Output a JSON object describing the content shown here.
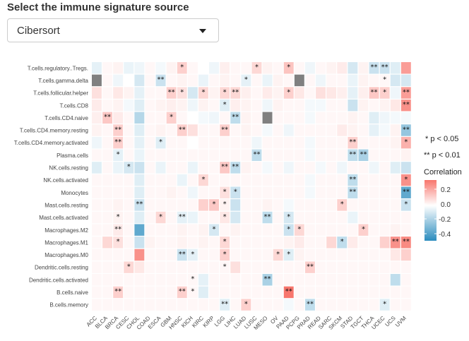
{
  "header": {
    "title": "Select the immune signature source"
  },
  "selector": {
    "value": "Cibersort"
  },
  "legend": {
    "sig1": "* p < 0.05",
    "sig2": "** p < 0.01",
    "title": "Correlation",
    "ticks": [
      "0.2",
      "0.0",
      "-0.2",
      "-0.4"
    ],
    "colors": {
      "high": "#f8766d",
      "mid": "#ffffff",
      "low": "#2b8cbe",
      "na": "#808080"
    }
  },
  "chart_data": {
    "type": "heatmap",
    "x_categories": [
      "ACC",
      "BLCA",
      "BRCA",
      "CESC",
      "CHOL",
      "COAD",
      "ESCA",
      "GBM",
      "HNSC",
      "KICH",
      "KIRC",
      "KIRP",
      "LGG",
      "LIHC",
      "LUAD",
      "LUSC",
      "MESO",
      "OV",
      "PAAD",
      "PCPG",
      "PRAD",
      "READ",
      "SARC",
      "SKCM",
      "STAD",
      "TGCT",
      "THCA",
      "UCEC",
      "UCS",
      "UVM"
    ],
    "y_categories": [
      "T.cells.regulatory..Tregs.",
      "T.cells.gamma.delta",
      "T.cells.follicular.helper",
      "T.cells.CD8",
      "T.cells.CD4.naive",
      "T.cells.CD4.memory.resting",
      "T.cells.CD4.memory.activated",
      "Plasma.cells",
      "NK.cells.resting",
      "NK.cells.activated",
      "Monocytes",
      "Mast.cells.resting",
      "Mast.cells.activated",
      "Macrophages.M2",
      "Macrophages.M1",
      "Macrophages.M0",
      "Dendritic.cells.resting",
      "Dendritic.cells.activated",
      "B.cells.naive",
      "B.cells.memory"
    ],
    "values": [
      [
        -0.05,
        0.02,
        0.03,
        -0.04,
        -0.03,
        0.02,
        -0.02,
        0.03,
        0.12,
        0.02,
        0.0,
        -0.03,
        0.04,
        0.02,
        0.02,
        0.1,
        0.03,
        0.02,
        0.15,
        0.02,
        -0.03,
        0.02,
        0.03,
        0.05,
        -0.08,
        0.03,
        -0.1,
        -0.1,
        -0.06,
        0.25
      ],
      [
        null,
        0.02,
        -0.03,
        0.0,
        -0.08,
        0.02,
        -0.1,
        0.02,
        0.03,
        0.02,
        -0.04,
        0.02,
        0.03,
        0.02,
        -0.05,
        0.02,
        -0.04,
        0.03,
        0.02,
        null,
        0.02,
        -0.03,
        0.02,
        0.02,
        -0.04,
        0.03,
        0.02,
        0.02,
        -0.08,
        -0.08
      ],
      [
        0.08,
        0.02,
        0.06,
        0.03,
        -0.05,
        0.02,
        0.02,
        0.12,
        0.08,
        -0.08,
        0.1,
        0.03,
        0.1,
        0.1,
        0.04,
        0.02,
        0.05,
        0.03,
        0.12,
        0.06,
        0.02,
        0.08,
        0.06,
        0.04,
        -0.05,
        0.04,
        0.14,
        0.12,
        -0.03,
        0.25
      ],
      [
        0.05,
        0.02,
        0.03,
        -0.02,
        -0.06,
        0.02,
        0.03,
        0.04,
        0.03,
        -0.03,
        0.03,
        0.02,
        -0.06,
        0.04,
        0.03,
        0.02,
        -0.03,
        0.03,
        0.02,
        0.02,
        -0.02,
        -0.02,
        0.02,
        0.02,
        -0.1,
        0.03,
        0.02,
        0.03,
        0.06,
        0.28
      ],
      [
        0.04,
        0.14,
        0.05,
        0.02,
        -0.14,
        0.02,
        0.02,
        0.12,
        0.02,
        0.0,
        -0.02,
        -0.03,
        0.02,
        -0.12,
        0.03,
        0.02,
        null,
        0.02,
        0.02,
        0.02,
        -0.02,
        0.02,
        0.02,
        0.02,
        0.03,
        0.02,
        -0.06,
        -0.03,
        -0.02,
        -0.02
      ],
      [
        0.03,
        0.02,
        0.12,
        0.02,
        -0.06,
        0.02,
        0.03,
        0.02,
        0.12,
        0.08,
        0.02,
        0.02,
        0.12,
        0.02,
        0.03,
        0.02,
        -0.02,
        0.02,
        -0.03,
        0.02,
        0.02,
        0.02,
        0.02,
        0.05,
        0.03,
        0.02,
        -0.05,
        -0.02,
        0.03,
        -0.2
      ],
      [
        -0.03,
        0.02,
        0.12,
        0.02,
        -0.05,
        0.02,
        -0.06,
        0.02,
        0.02,
        0.0,
        0.02,
        0.02,
        0.02,
        0.02,
        0.02,
        -0.03,
        0.02,
        0.02,
        0.02,
        0.02,
        -0.02,
        0.02,
        0.02,
        0.02,
        0.12,
        0.02,
        0.02,
        0.02,
        0.03,
        0.2
      ],
      [
        0.02,
        0.02,
        -0.05,
        0.02,
        -0.04,
        0.02,
        0.02,
        0.02,
        0.02,
        0.02,
        0.02,
        0.02,
        0.02,
        0.02,
        0.02,
        -0.12,
        0.02,
        0.02,
        0.02,
        0.02,
        -0.02,
        0.02,
        0.02,
        0.02,
        -0.12,
        -0.16,
        0.02,
        0.02,
        0.02,
        0.03
      ],
      [
        -0.06,
        0.02,
        -0.04,
        -0.08,
        -0.1,
        0.02,
        -0.04,
        0.02,
        0.02,
        -0.04,
        0.02,
        0.02,
        0.14,
        -0.12,
        0.03,
        0.02,
        -0.02,
        0.02,
        -0.03,
        0.02,
        0.02,
        -0.02,
        0.02,
        -0.03,
        0.02,
        0.02,
        -0.03,
        0.02,
        -0.06,
        -0.1
      ],
      [
        0.02,
        0.02,
        0.02,
        0.02,
        -0.06,
        0.02,
        0.02,
        0.02,
        -0.04,
        0.02,
        0.1,
        0.02,
        0.02,
        0.02,
        0.02,
        0.02,
        0.02,
        0.02,
        0.02,
        0.02,
        -0.02,
        0.02,
        0.02,
        0.02,
        -0.12,
        0.02,
        0.02,
        0.02,
        0.02,
        0.28
      ],
      [
        0.02,
        0.02,
        0.02,
        0.02,
        -0.06,
        0.02,
        0.02,
        0.03,
        0.02,
        -0.03,
        0.02,
        0.02,
        0.08,
        -0.1,
        0.02,
        0.02,
        0.02,
        0.02,
        0.02,
        0.02,
        -0.02,
        0.02,
        0.02,
        0.02,
        -0.12,
        0.02,
        0.02,
        0.02,
        0.02,
        -0.3
      ],
      [
        0.02,
        0.02,
        0.03,
        0.02,
        -0.1,
        0.02,
        0.02,
        0.02,
        0.02,
        0.02,
        0.12,
        0.14,
        0.03,
        -0.1,
        0.02,
        0.02,
        0.03,
        0.02,
        -0.02,
        0.02,
        0.02,
        0.02,
        0.02,
        0.12,
        0.02,
        0.02,
        0.02,
        0.02,
        0.02,
        -0.1
      ],
      [
        0.02,
        0.02,
        0.03,
        0.02,
        -0.06,
        0.02,
        0.1,
        0.02,
        -0.05,
        -0.04,
        0.02,
        0.02,
        0.06,
        -0.08,
        0.02,
        0.02,
        -0.12,
        0.02,
        -0.08,
        0.02,
        0.02,
        0.02,
        0.02,
        0.02,
        -0.04,
        0.02,
        0.02,
        0.02,
        0.02,
        0.02
      ],
      [
        0.02,
        0.02,
        0.05,
        0.02,
        -0.3,
        0.02,
        0.02,
        0.02,
        0.03,
        0.02,
        0.03,
        -0.08,
        0.02,
        0.03,
        0.02,
        0.02,
        0.02,
        0.02,
        -0.1,
        0.1,
        0.02,
        0.02,
        0.02,
        0.02,
        0.02,
        0.12,
        0.02,
        0.02,
        0.03,
        0.02
      ],
      [
        0.02,
        0.1,
        0.08,
        0.02,
        -0.1,
        0.03,
        0.02,
        0.02,
        0.03,
        0.02,
        0.03,
        0.02,
        0.1,
        0.02,
        0.02,
        0.02,
        0.02,
        0.02,
        0.03,
        0.05,
        0.02,
        0.02,
        0.1,
        -0.12,
        0.05,
        0.02,
        0.02,
        0.12,
        0.28,
        0.3
      ],
      [
        0.02,
        0.02,
        0.02,
        0.02,
        0.28,
        0.02,
        0.02,
        0.02,
        -0.1,
        -0.05,
        0.02,
        0.02,
        0.12,
        0.02,
        0.02,
        0.02,
        0.02,
        0.1,
        -0.06,
        0.03,
        0.02,
        0.02,
        0.02,
        0.02,
        0.02,
        0.02,
        0.02,
        0.02,
        0.06,
        0.12
      ],
      [
        0.02,
        0.02,
        0.02,
        0.1,
        0.06,
        0.02,
        0.02,
        0.02,
        0.02,
        0.02,
        0.02,
        0.02,
        0.02,
        0.08,
        0.02,
        0.02,
        0.02,
        0.02,
        0.02,
        0.02,
        0.12,
        0.02,
        0.02,
        0.02,
        0.02,
        0.02,
        0.02,
        0.02,
        0.02,
        0.02
      ],
      [
        0.02,
        0.02,
        0.02,
        0.02,
        0.02,
        0.02,
        0.02,
        0.02,
        0.02,
        0.02,
        -0.05,
        0.02,
        0.02,
        0.02,
        0.02,
        0.02,
        -0.16,
        0.02,
        0.02,
        0.02,
        0.02,
        0.02,
        0.02,
        0.02,
        0.02,
        0.02,
        0.02,
        0.02,
        -0.12,
        0.02
      ],
      [
        0.02,
        0.02,
        0.12,
        0.02,
        0.02,
        0.02,
        0.02,
        0.02,
        0.12,
        0.02,
        -0.06,
        0.02,
        0.02,
        0.02,
        0.02,
        0.02,
        0.02,
        0.02,
        0.35,
        0.02,
        0.02,
        0.02,
        0.02,
        0.02,
        0.02,
        0.02,
        0.02,
        0.02,
        0.02,
        0.02
      ],
      [
        0.02,
        0.02,
        0.02,
        0.02,
        0.02,
        0.02,
        0.02,
        0.02,
        0.02,
        0.02,
        0.02,
        0.02,
        -0.06,
        0.02,
        0.12,
        0.02,
        0.02,
        0.02,
        -0.02,
        0.02,
        -0.12,
        0.02,
        0.02,
        0.02,
        0.02,
        0.02,
        0.02,
        -0.06,
        0.02,
        0.02
      ]
    ],
    "stars": [
      [
        "",
        "",
        "",
        "",
        "",
        "",
        "",
        "",
        "*",
        "",
        "",
        "",
        "",
        "",
        "",
        "*",
        "",
        "",
        "*",
        "",
        "",
        "",
        "",
        "",
        "",
        "",
        "**",
        "**",
        "",
        ""
      ],
      [
        "",
        "",
        "",
        "",
        "",
        "",
        "**",
        "",
        "",
        "",
        "",
        "",
        "",
        "",
        "*",
        "",
        "",
        "",
        "",
        "",
        "",
        "",
        "",
        "",
        "",
        "",
        "",
        "*",
        "",
        ""
      ],
      [
        "",
        "",
        "",
        "",
        "",
        "",
        "",
        "**",
        "*",
        "",
        "*",
        "",
        "*",
        "**",
        "",
        "",
        "",
        "",
        "*",
        "",
        "",
        "",
        "",
        "",
        "",
        "",
        "**",
        "*",
        "",
        "**"
      ],
      [
        "",
        "",
        "",
        "",
        "",
        "",
        "",
        "",
        "",
        "",
        "",
        "",
        "*",
        "",
        "",
        "",
        "",
        "",
        "",
        "",
        "",
        "",
        "",
        "",
        "",
        "",
        "",
        "",
        "",
        "**"
      ],
      [
        "",
        "**",
        "",
        "",
        "",
        "",
        "",
        "*",
        "",
        "",
        "",
        "",
        "",
        "**",
        "",
        "",
        "",
        "",
        "",
        "",
        "",
        "",
        "",
        "",
        "",
        "",
        "",
        "",
        "",
        ""
      ],
      [
        "",
        "",
        "**",
        "",
        "",
        "",
        "",
        "",
        "**",
        "",
        "",
        "",
        "**",
        "",
        "",
        "",
        "",
        "",
        "",
        "",
        "",
        "",
        "",
        "",
        "",
        "",
        "",
        "",
        "",
        "**"
      ],
      [
        "",
        "",
        "**",
        "",
        "",
        "",
        "*",
        "",
        "",
        "",
        "",
        "",
        "",
        "",
        "",
        "",
        "",
        "",
        "",
        "",
        "",
        "",
        "",
        "",
        "**",
        "",
        "",
        "",
        "",
        "*"
      ],
      [
        "",
        "",
        "*",
        "",
        "",
        "",
        "",
        "",
        "",
        "",
        "",
        "",
        "",
        "",
        "",
        "**",
        "",
        "",
        "",
        "",
        "",
        "",
        "",
        "",
        "**",
        "**",
        "",
        "",
        "",
        ""
      ],
      [
        "",
        "",
        "",
        "*",
        "",
        "",
        "",
        "",
        "",
        "",
        "",
        "",
        "**",
        "**",
        "",
        "",
        "",
        "",
        "",
        "",
        "",
        "",
        "",
        "",
        "",
        "",
        "",
        "",
        "",
        ""
      ],
      [
        "",
        "",
        "",
        "",
        "",
        "",
        "",
        "",
        "",
        "",
        "*",
        "",
        "",
        "",
        "",
        "",
        "",
        "",
        "",
        "",
        "",
        "",
        "",
        "",
        "**",
        "",
        "",
        "",
        "",
        "*"
      ],
      [
        "",
        "",
        "",
        "",
        "",
        "",
        "",
        "",
        "",
        "",
        "",
        "",
        "*",
        "*",
        "",
        "",
        "",
        "",
        "",
        "",
        "",
        "",
        "",
        "",
        "**",
        "",
        "",
        "",
        "",
        "**"
      ],
      [
        "",
        "",
        "",
        "",
        "**",
        "",
        "",
        "",
        "",
        "",
        "",
        "*",
        "*",
        "",
        "",
        "",
        "",
        "",
        "",
        "",
        "",
        "",
        "",
        "*",
        "",
        "",
        "",
        "",
        "",
        "*"
      ],
      [
        "",
        "",
        "*",
        "",
        "",
        "",
        "*",
        "",
        "**",
        "",
        "",
        "",
        "*",
        "",
        "",
        "",
        "**",
        "",
        "*",
        "",
        "",
        "",
        "",
        "",
        "",
        "",
        "",
        "",
        "",
        ""
      ],
      [
        "",
        "",
        "**",
        "",
        "",
        "",
        "",
        "",
        "",
        "",
        "",
        "*",
        "",
        "",
        "",
        "",
        "",
        "",
        "*",
        "*",
        "",
        "",
        "",
        "",
        "",
        "*",
        "",
        "",
        "",
        ""
      ],
      [
        "",
        "",
        "*",
        "",
        "",
        "",
        "",
        "",
        "",
        "",
        "",
        "",
        "*",
        "",
        "",
        "",
        "",
        "",
        "",
        "",
        "",
        "",
        "",
        "*",
        "",
        "",
        "",
        "",
        "**",
        "**"
      ],
      [
        "",
        "",
        "",
        "",
        "",
        "",
        "",
        "",
        "**",
        "*",
        "",
        "",
        "*",
        "",
        "",
        "",
        "",
        "*",
        "*",
        "",
        "",
        "",
        "",
        "",
        "",
        "",
        "",
        "",
        "",
        ""
      ],
      [
        "",
        "",
        "",
        "*",
        "",
        "",
        "",
        "",
        "",
        "",
        "",
        "",
        "*",
        "",
        "",
        "",
        "",
        "",
        "",
        "",
        "**",
        "",
        "",
        "",
        "",
        "",
        "",
        "",
        "",
        ""
      ],
      [
        "",
        "",
        "",
        "",
        "",
        "",
        "",
        "",
        "",
        "*",
        "",
        "",
        "",
        "",
        "",
        "",
        "**",
        "",
        "",
        "",
        "",
        "",
        "",
        "",
        "",
        "",
        "",
        "",
        "",
        ""
      ],
      [
        "",
        "",
        "**",
        "",
        "",
        "",
        "",
        "",
        "**",
        "*",
        "",
        "",
        "",
        "",
        "",
        "",
        "",
        "",
        "**",
        "",
        "",
        "",
        "",
        "",
        "",
        "",
        "",
        "",
        "",
        ""
      ],
      [
        "",
        "",
        "",
        "",
        "",
        "",
        "",
        "",
        "",
        "",
        "",
        "",
        "**",
        "",
        "*",
        "",
        "",
        "",
        "",
        "",
        "**",
        "",
        "",
        "",
        "",
        "",
        "",
        "*",
        "",
        ""
      ]
    ],
    "scale": {
      "min": -0.4,
      "max": 0.35
    }
  }
}
